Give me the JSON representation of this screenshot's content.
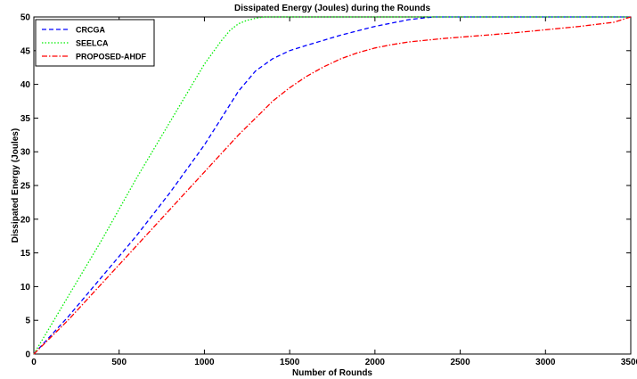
{
  "chart_data": {
    "type": "line",
    "title": "Dissipated Energy (Joules) during the Rounds",
    "xlabel": "Number of Rounds",
    "ylabel": "Dissipated Energy (Joules)",
    "xlim": [
      0,
      3500
    ],
    "ylim": [
      0,
      50
    ],
    "xticks": [
      "0",
      "500",
      "1000",
      "1500",
      "2000",
      "2500",
      "3000",
      "3500"
    ],
    "yticks": [
      "0",
      "5",
      "10",
      "15",
      "20",
      "25",
      "30",
      "35",
      "40",
      "45",
      "50"
    ],
    "grid": false,
    "legend_position": "top-left",
    "series": [
      {
        "name": "CRCGA",
        "color": "#0000ff",
        "dash": "dashed",
        "x": [
          0,
          200,
          400,
          600,
          800,
          1000,
          1100,
          1200,
          1300,
          1400,
          1500,
          1600,
          1800,
          2000,
          2200,
          2300,
          2350,
          2500,
          3000,
          3500
        ],
        "y": [
          0,
          5.5,
          11.5,
          17.5,
          24,
          31,
          35,
          39,
          42,
          43.8,
          45,
          45.8,
          47.3,
          48.6,
          49.6,
          49.9,
          50,
          50,
          50,
          50
        ]
      },
      {
        "name": "SEELCA",
        "color": "#00ee00",
        "dash": "dotted",
        "x": [
          0,
          200,
          400,
          600,
          800,
          1000,
          1100,
          1150,
          1200,
          1250,
          1300,
          1350,
          1400,
          1500,
          2000,
          2500,
          3000,
          3500
        ],
        "y": [
          0,
          8.5,
          17,
          26,
          34.5,
          43,
          46.5,
          48,
          49,
          49.5,
          49.8,
          50,
          50,
          50,
          50,
          50,
          50,
          50
        ]
      },
      {
        "name": "PROPOSED-AHDF",
        "color": "#ff0000",
        "dash": "dashdot",
        "x": [
          0,
          200,
          400,
          600,
          800,
          1000,
          1200,
          1300,
          1400,
          1500,
          1600,
          1700,
          1800,
          1900,
          2000,
          2100,
          2200,
          2400,
          2600,
          2800,
          3000,
          3200,
          3400,
          3500
        ],
        "y": [
          0,
          5,
          10.5,
          16,
          21.5,
          27,
          32.5,
          35,
          37.5,
          39.5,
          41.2,
          42.6,
          43.8,
          44.7,
          45.4,
          45.9,
          46.3,
          46.8,
          47.2,
          47.6,
          48.1,
          48.6,
          49.2,
          50
        ]
      }
    ]
  }
}
